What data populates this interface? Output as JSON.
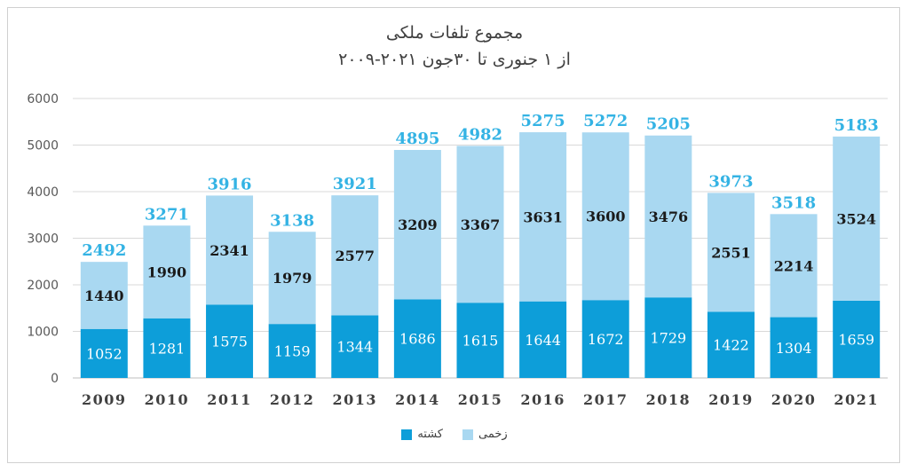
{
  "chart_data": {
    "type": "bar",
    "stacked": true,
    "title": "مجموع تلفات ملکی",
    "subtitle": "از ۱ جنوری تا ۳۰جون ۲۰۲۱-۲۰۰۹",
    "categories": [
      "2009",
      "2010",
      "2011",
      "2012",
      "2013",
      "2014",
      "2015",
      "2016",
      "2017",
      "2018",
      "2019",
      "2020",
      "2021"
    ],
    "series": [
      {
        "name": "کشته",
        "color": "#0d9ed9",
        "values": [
          1052,
          1281,
          1575,
          1159,
          1344,
          1686,
          1615,
          1644,
          1672,
          1729,
          1422,
          1304,
          1659
        ]
      },
      {
        "name": "زخمی",
        "color": "#a9d8f1",
        "values": [
          1440,
          1990,
          2341,
          1979,
          2577,
          3209,
          3367,
          3631,
          3600,
          3476,
          2551,
          2214,
          3524
        ]
      }
    ],
    "totals": [
      2492,
      3271,
      3916,
      3138,
      3921,
      4895,
      4982,
      5275,
      5272,
      5205,
      3973,
      3518,
      5183
    ],
    "ylim": [
      0,
      6000
    ],
    "yticks": [
      0,
      1000,
      2000,
      3000,
      4000,
      5000,
      6000
    ],
    "grid": true,
    "total_label_color": "#34b3e4",
    "legend_position": "bottom"
  }
}
